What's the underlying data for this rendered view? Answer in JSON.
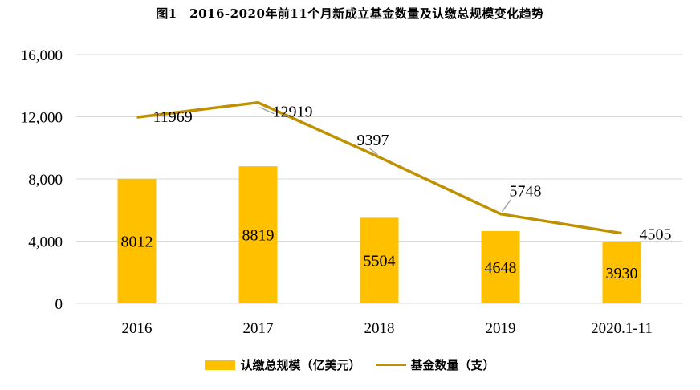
{
  "chart_data": {
    "type": "bar+line",
    "title": "图1　2016-2020年前11个月新成立基金数量及认缴总规模变化趋势",
    "categories": [
      "2016",
      "2017",
      "2018",
      "2019",
      "2020.1-11"
    ],
    "series": [
      {
        "name": "认缴总规模（亿美元）",
        "type": "bar",
        "values": [
          8012,
          8819,
          5504,
          4648,
          3930
        ]
      },
      {
        "name": "基金数量（支）",
        "type": "line",
        "values": [
          11969,
          12919,
          9397,
          5748,
          4505
        ]
      }
    ],
    "ylim": [
      0,
      16000
    ],
    "yticks": [
      "0",
      "4,000",
      "8,000",
      "12,000",
      "16,000"
    ],
    "grid": true,
    "legend_position": "bottom",
    "colors": {
      "bar": "#FFC000",
      "line": "#BF9000",
      "grid": "#D9D9D9",
      "leader": "#A6A6A6"
    }
  }
}
